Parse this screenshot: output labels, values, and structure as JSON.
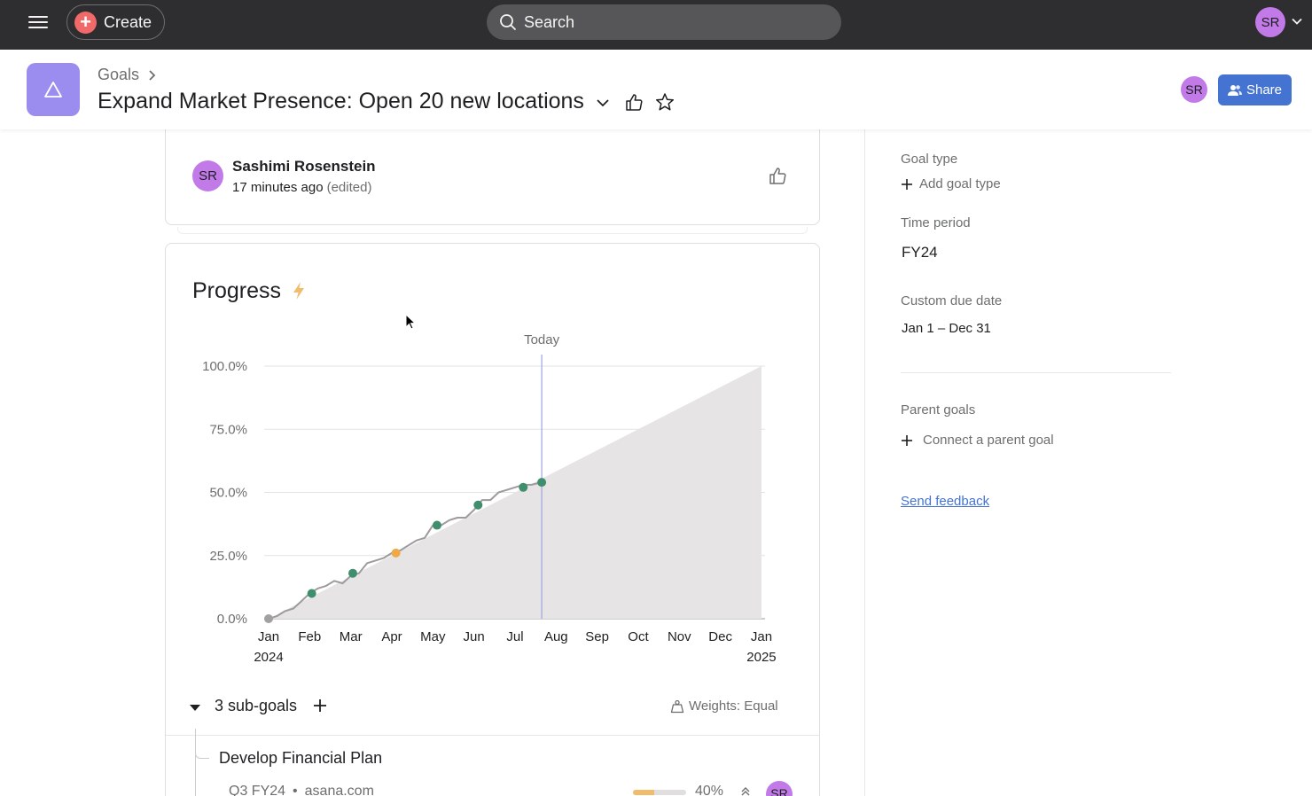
{
  "topbar": {
    "create_label": "Create",
    "search_label": "Search",
    "user_initials": "SR"
  },
  "header": {
    "breadcrumb": "Goals",
    "title": "Expand Market Presence: Open 20 new locations",
    "avatar_initials": "SR",
    "share_label": "Share"
  },
  "comment": {
    "avatar_initials": "SR",
    "author": "Sashimi Rosenstein",
    "time": "17 minutes ago",
    "edited": "(edited)"
  },
  "progress": {
    "title": "Progress"
  },
  "chart_data": {
    "type": "line",
    "title": "",
    "today_label": "Today",
    "y_ticks": [
      "100.0%",
      "75.0%",
      "50.0%",
      "25.0%",
      "0.0%"
    ],
    "ylim": [
      0,
      100
    ],
    "x_ticks": [
      {
        "month": "Jan",
        "year": "2024"
      },
      {
        "month": "Feb",
        "year": ""
      },
      {
        "month": "Mar",
        "year": ""
      },
      {
        "month": "Apr",
        "year": ""
      },
      {
        "month": "May",
        "year": ""
      },
      {
        "month": "Jun",
        "year": ""
      },
      {
        "month": "Jul",
        "year": ""
      },
      {
        "month": "Aug",
        "year": ""
      },
      {
        "month": "Sep",
        "year": ""
      },
      {
        "month": "Oct",
        "year": ""
      },
      {
        "month": "Nov",
        "year": ""
      },
      {
        "month": "Dec",
        "year": ""
      },
      {
        "month": "Jan",
        "year": "2025"
      }
    ],
    "today_month": 6.65,
    "expected_series": {
      "from": [
        0,
        0
      ],
      "to": [
        12,
        100
      ]
    },
    "actual_line": [
      [
        0,
        0
      ],
      [
        0.2,
        1
      ],
      [
        0.4,
        3
      ],
      [
        0.6,
        4
      ],
      [
        0.8,
        7
      ],
      [
        1.0,
        10
      ],
      [
        1.2,
        12
      ],
      [
        1.4,
        13
      ],
      [
        1.6,
        15
      ],
      [
        1.8,
        14
      ],
      [
        2.0,
        17
      ],
      [
        2.2,
        18
      ],
      [
        2.4,
        22
      ],
      [
        2.6,
        23
      ],
      [
        2.8,
        24
      ],
      [
        3.0,
        26
      ],
      [
        3.2,
        27
      ],
      [
        3.4,
        29
      ],
      [
        3.6,
        31
      ],
      [
        3.8,
        32
      ],
      [
        4.0,
        37
      ],
      [
        4.2,
        37
      ],
      [
        4.4,
        39
      ],
      [
        4.6,
        40
      ],
      [
        4.8,
        40
      ],
      [
        5.0,
        43
      ],
      [
        5.2,
        47
      ],
      [
        5.4,
        47
      ],
      [
        5.6,
        50
      ],
      [
        5.8,
        51
      ],
      [
        6.0,
        52
      ],
      [
        6.2,
        53
      ],
      [
        6.4,
        53
      ],
      [
        6.65,
        54
      ]
    ],
    "points": [
      {
        "x": 0.0,
        "y": 0,
        "status": "start"
      },
      {
        "x": 1.05,
        "y": 10,
        "status": "on-track"
      },
      {
        "x": 2.05,
        "y": 18,
        "status": "on-track"
      },
      {
        "x": 3.1,
        "y": 26,
        "status": "at-risk"
      },
      {
        "x": 4.1,
        "y": 37,
        "status": "on-track"
      },
      {
        "x": 5.1,
        "y": 45,
        "status": "on-track"
      },
      {
        "x": 6.2,
        "y": 52,
        "status": "on-track"
      },
      {
        "x": 6.65,
        "y": 54,
        "status": "on-track"
      }
    ],
    "colors": {
      "on-track": "#3f8f6e",
      "at-risk": "#f1a948",
      "start": "#a2a0a2",
      "line": "#9d9b9d",
      "area": "#e6e4e5",
      "today": "#9aa6e0",
      "grid": "#e3e3e3"
    }
  },
  "subgoals": {
    "label": "3 sub-goals",
    "weights_label": "Weights: Equal",
    "items": [
      {
        "name": "Develop Financial Plan",
        "period": "Q3 FY24",
        "source": "asana.com",
        "progress": 0.4,
        "progress_label": "40%",
        "avatar_initials": "SR"
      }
    ]
  },
  "sidebar": {
    "goal_type_label": "Goal type",
    "add_goal_type": "Add goal type",
    "time_period_label": "Time period",
    "time_period_value": "FY24",
    "due_date_label": "Custom due date",
    "due_date_value": "Jan 1 – Dec 31",
    "parent_goals_label": "Parent goals",
    "connect_parent": "Connect a parent goal",
    "feedback": "Send feedback"
  }
}
